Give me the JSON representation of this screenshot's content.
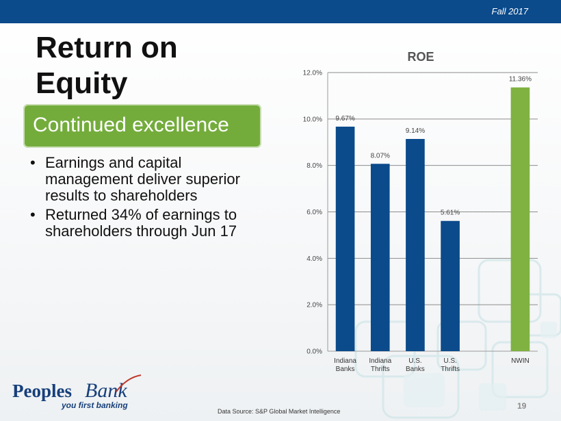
{
  "header": {
    "date": "Fall 2017"
  },
  "slide": {
    "title_line1": "Return on",
    "title_line2": "Equity",
    "subtitle": "Continued excellence",
    "bullets": [
      "Earnings and capital management deliver superior results to shareholders",
      "Returned 34% of earnings to shareholders through Jun 17"
    ],
    "bullet_symbol": "•"
  },
  "chart_data": {
    "type": "bar",
    "title": "ROE",
    "categories": [
      [
        "Indiana",
        "Banks"
      ],
      [
        "Indiana",
        "Thrifts"
      ],
      [
        "U.S.",
        "Banks"
      ],
      [
        "U.S.",
        "Thrifts"
      ],
      [
        ""
      ],
      [
        "NWIN"
      ]
    ],
    "values": [
      9.67,
      8.07,
      9.14,
      5.61,
      null,
      11.36
    ],
    "data_labels": [
      "9.67%",
      "8.07%",
      "9.14%",
      "5.61%",
      "",
      "11.36%"
    ],
    "bar_colors": [
      "#0b4a8b",
      "#0b4a8b",
      "#0b4a8b",
      "#0b4a8b",
      null,
      "#7fb241"
    ],
    "ylim": [
      0,
      12
    ],
    "yticks": [
      "0.0%",
      "2.0%",
      "4.0%",
      "6.0%",
      "8.0%",
      "10.0%",
      "12.0%"
    ],
    "grid": true,
    "legend": "none"
  },
  "footer": {
    "logo_word1": "Peoples",
    "logo_word2": "Bank",
    "logo_tagline": "you first banking",
    "source": "Data Source: S&P Global Market Intelligence",
    "page_number": "19"
  },
  "colors": {
    "header_bar": "#0b4a8b",
    "subtitle_bg": "#74ac3c",
    "bar_primary": "#0b4a8b",
    "bar_highlight": "#7fb241"
  }
}
